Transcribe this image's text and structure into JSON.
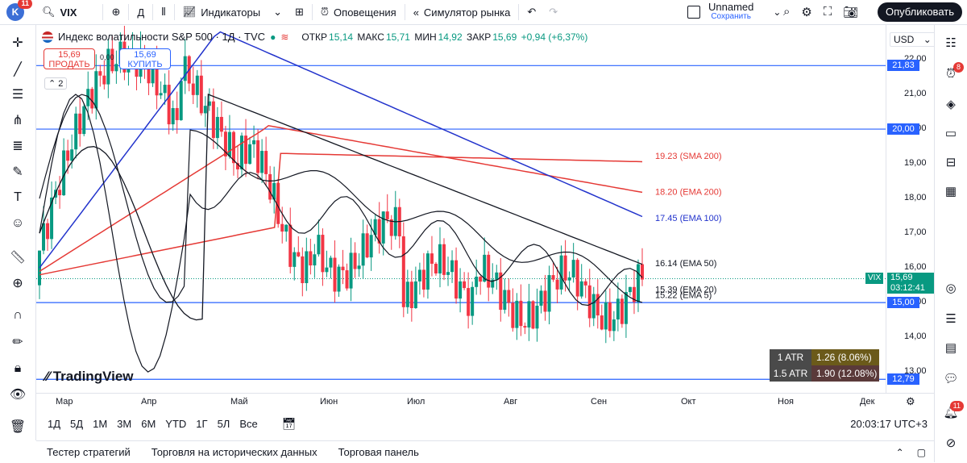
{
  "topbar": {
    "avatar_letter": "K",
    "avatar_badge": "11",
    "symbol": "VIX",
    "interval": "Д",
    "indicators_label": "Индикаторы",
    "alerts_label": "Оповещения",
    "replay_label": "Симулятор рынка",
    "layout_name": "Unnamed",
    "layout_status": "Сохранить",
    "publish_label": "Опубликовать"
  },
  "legend": {
    "title": "Индекс волатильности S&P 500 · 1Д · TVC",
    "open_label": "ОТКР",
    "open": "15,14",
    "high_label": "МАКС",
    "high": "15,71",
    "low_label": "МИН",
    "low": "14,92",
    "close_label": "ЗАКР",
    "close": "15,69",
    "change": "+0,94 (+6,37%)",
    "sell_price": "15,69",
    "sell_label": "ПРОДАТЬ",
    "buy_price": "15,69",
    "buy_label": "КУПИТЬ",
    "spread": "0,00",
    "indicators_count": "2",
    "currency": "USD"
  },
  "price_scale": {
    "ticks": [
      "22,00",
      "21,00",
      "20,00",
      "19,00",
      "18,00",
      "17,00",
      "16,00",
      "15,00",
      "14,00",
      "13,00"
    ],
    "labels": [
      {
        "text": "21,83",
        "color": "#2962ff"
      },
      {
        "text": "20,00",
        "color": "#2962ff"
      },
      {
        "text": "15,00",
        "color": "#2962ff"
      },
      {
        "text": "12,79",
        "color": "#2962ff"
      }
    ],
    "current": {
      "symbol": "VIX",
      "price": "15,69",
      "countdown": "03:12:41",
      "color": "#089981"
    }
  },
  "chart_data": {
    "type": "candlestick",
    "x_labels": [
      "Мар",
      "Апр",
      "Май",
      "Июн",
      "Июл",
      "Авг",
      "Сен",
      "Окт",
      "Ноя",
      "Дек"
    ],
    "y_range": [
      12.4,
      23.0
    ],
    "horizontal_lines": [
      21.83,
      20.0,
      15.0,
      12.79
    ],
    "ma_labels": [
      {
        "text": "19.23 (SMA 200)",
        "value": 19.23,
        "color": "#e53935"
      },
      {
        "text": "18.20 (EMA 200)",
        "value": 18.2,
        "color": "#e53935"
      },
      {
        "text": "17.45 (EMA 100)",
        "value": 17.45,
        "color": "#2233cc"
      },
      {
        "text": "16.14 (EMA 50)",
        "value": 16.14,
        "color": "#131722"
      },
      {
        "text": "15.39 (EMA 20)",
        "value": 15.39,
        "color": "#131722"
      },
      {
        "text": "15.22 (EMA 5)",
        "value": 15.22,
        "color": "#131722"
      }
    ],
    "last_close": 15.69
  },
  "atr": [
    {
      "label": "1 ATR",
      "value": "1.26 (8.06%)",
      "color": "#6b5a1a"
    },
    {
      "label": "1.5 ATR",
      "value": "1.90 (12.08%)",
      "color": "#5a3a3a"
    }
  ],
  "watermark": "TradingView",
  "ranges": [
    "1Д",
    "5Д",
    "1М",
    "3М",
    "6М",
    "YTD",
    "1Г",
    "5Л",
    "Все"
  ],
  "clock": "20:03:17 UTC+3",
  "bottom_tabs": [
    "Тестер стратегий",
    "Торговля на исторических данных",
    "Торговая панель"
  ],
  "right_badges": {
    "b1": "8",
    "b2": "11"
  }
}
